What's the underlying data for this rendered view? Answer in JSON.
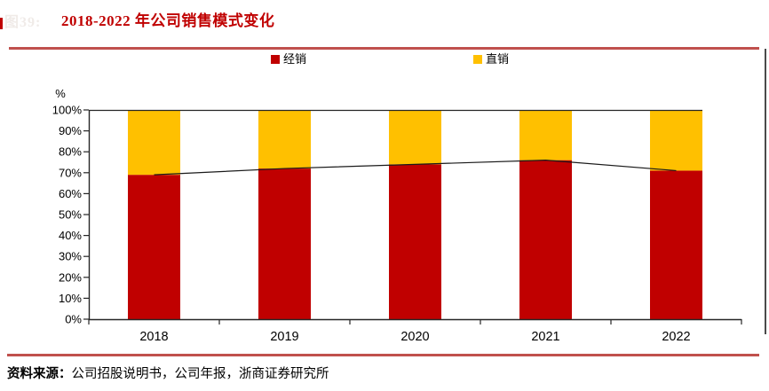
{
  "figure_label": "图39:",
  "title": "2018-2022 年公司销售模式变化",
  "legend": [
    {
      "label": "经销",
      "color": "#c00000"
    },
    {
      "label": "直销",
      "color": "#ffc000"
    }
  ],
  "source": {
    "prefix": "资料来源：",
    "text": "公司招股说明书，公司年报，浙商证券研究所"
  },
  "colors": {
    "title_red": "#c00000",
    "rule_red": "#c0504d",
    "bar_distribution": "#c00000",
    "bar_direct": "#ffc000",
    "line_series": "#1a1a1a",
    "axis": "#262626"
  },
  "chart_data": {
    "type": "bar",
    "subtype": "stacked-percent-with-line",
    "title": "2018-2022 年公司销售模式变化",
    "categories": [
      "2018",
      "2019",
      "2020",
      "2021",
      "2022"
    ],
    "series": [
      {
        "name": "经销",
        "type": "bar",
        "color": "#c00000",
        "values": [
          69,
          72,
          74,
          76,
          71
        ]
      },
      {
        "name": "直销",
        "type": "bar",
        "color": "#ffc000",
        "values": [
          31,
          28,
          26,
          24,
          29
        ]
      },
      {
        "name": "经销占比",
        "type": "line",
        "color": "#1a1a1a",
        "values": [
          69,
          72,
          74,
          76,
          71
        ]
      }
    ],
    "xlabel": "",
    "ylabel": "%",
    "ylim": [
      0,
      100
    ],
    "ytick_step": 10,
    "ytick_labels": [
      "0%",
      "10%",
      "20%",
      "30%",
      "40%",
      "50%",
      "60%",
      "70%",
      "80%",
      "90%",
      "100%"
    ],
    "grid": false,
    "legend_position": "top"
  }
}
